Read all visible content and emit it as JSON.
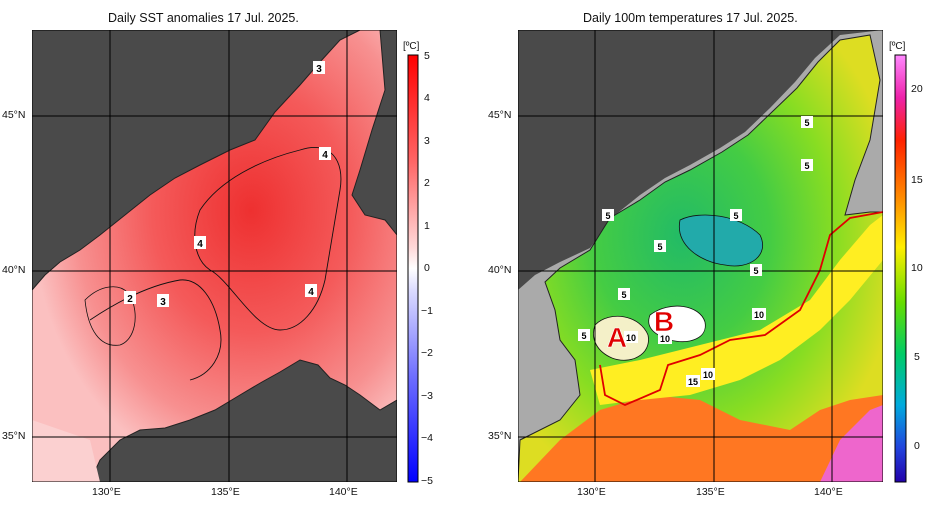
{
  "left_panel": {
    "title": "Daily SST anomalies 17 Jul. 2025.",
    "unit": "[ºC]",
    "colorbar_ticks": [
      "5",
      "4",
      "3",
      "2",
      "1",
      "0",
      "−1",
      "−2",
      "−3",
      "−4",
      "−5"
    ],
    "contour_labels": [
      "3",
      "4",
      "4",
      "4",
      "2",
      "3"
    ],
    "lat_labels": [
      "45°N",
      "40°N",
      "35°N"
    ],
    "lon_labels": [
      "130°E",
      "135°E",
      "140°E"
    ]
  },
  "right_panel": {
    "title": "Daily 100m temperatures 17 Jul. 2025.",
    "unit": "[ºC]",
    "colorbar_ticks": [
      "20",
      "15",
      "10",
      "5",
      "0"
    ],
    "contour_labels": [
      "5",
      "5",
      "5",
      "5",
      "5",
      "5",
      "5",
      "5",
      "10",
      "10",
      "10",
      "15",
      "10"
    ],
    "region_labels": [
      "A",
      "B"
    ],
    "lat_labels": [
      "45°N",
      "40°N",
      "35°N"
    ],
    "lon_labels": [
      "130°E",
      "135°E",
      "140°E"
    ]
  }
}
